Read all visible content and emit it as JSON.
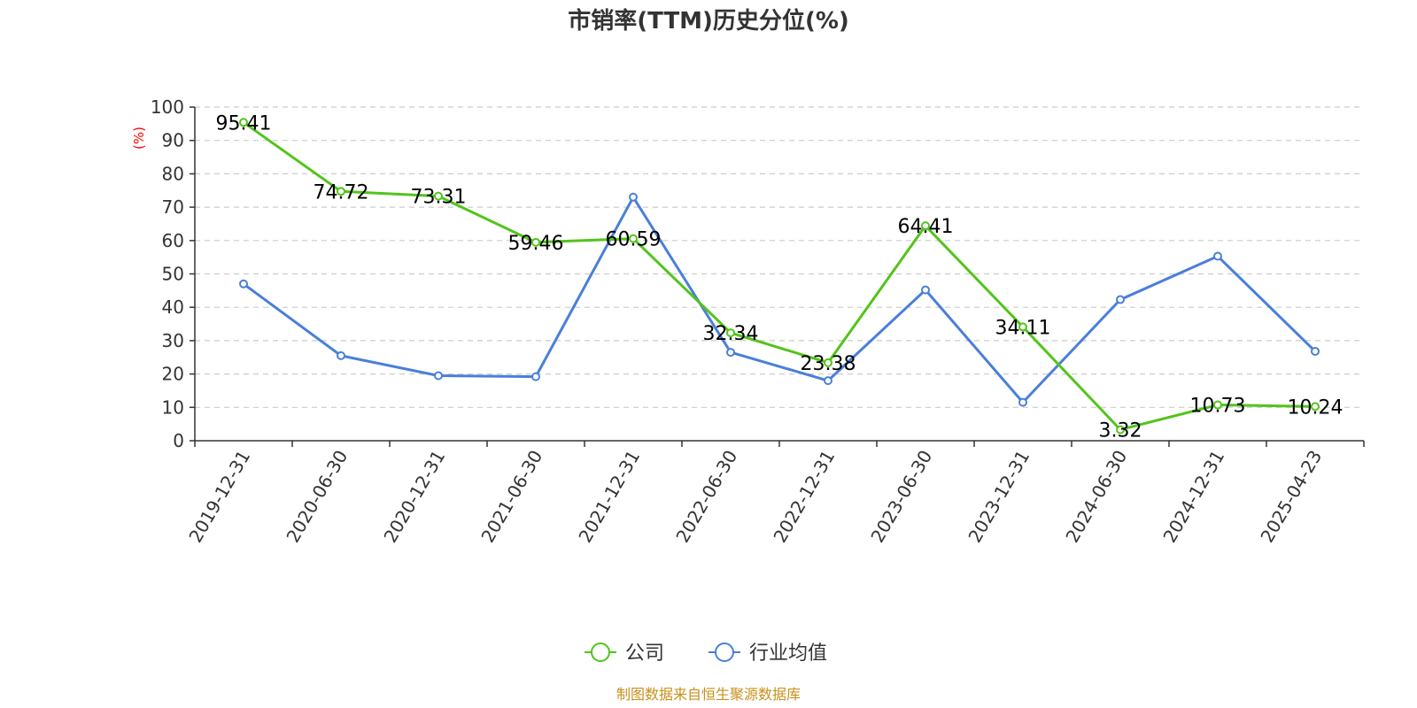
{
  "chart_data": {
    "type": "line",
    "title": "市销率(TTM)历史分位(%)",
    "ylabel": "(%)",
    "ylim": [
      0,
      100
    ],
    "yticks": [
      0,
      10,
      20,
      30,
      40,
      50,
      60,
      70,
      80,
      90,
      100
    ],
    "grid": true,
    "legend_position": "bottom",
    "categories": [
      "2019-12-31",
      "2020-06-30",
      "2020-12-31",
      "2021-06-30",
      "2021-12-31",
      "2022-06-30",
      "2022-12-31",
      "2023-06-30",
      "2023-12-31",
      "2024-06-30",
      "2024-12-31",
      "2025-04-23"
    ],
    "series": [
      {
        "name": "公司",
        "color": "#52c41a",
        "values": [
          95.41,
          74.72,
          73.31,
          59.46,
          60.59,
          32.34,
          23.38,
          64.41,
          34.11,
          3.32,
          10.73,
          10.24
        ],
        "labels": [
          "95.41",
          "74.72",
          "73.31",
          "59.46",
          "60.59",
          "32.34",
          "23.38",
          "64.41",
          "34.11",
          "3.32",
          "10.73",
          "10.24"
        ]
      },
      {
        "name": "行业均值",
        "color": "#4a7fd9",
        "values": [
          47,
          25.5,
          19.5,
          19.2,
          73,
          26.5,
          18,
          45.2,
          11.5,
          42.3,
          55.3,
          26.8
        ]
      }
    ],
    "source": "制图数据来自恒生聚源数据库"
  }
}
